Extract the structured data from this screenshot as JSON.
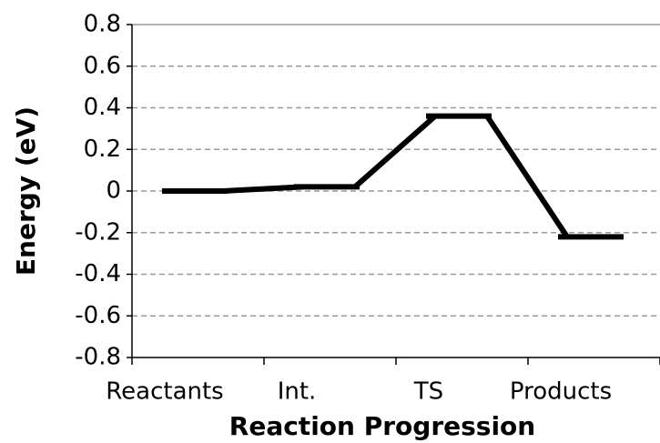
{
  "chart_data": {
    "type": "energy-profile",
    "x_label": "Reaction Progression",
    "y_label": "Energy (eV)",
    "categories": [
      "Reactants",
      "Int.",
      "TS",
      "Products"
    ],
    "values": [
      0,
      0.02,
      0.36,
      -0.22
    ],
    "color": "#000000",
    "ylim": [
      -0.8,
      0.8
    ],
    "yticks": [
      -0.8,
      -0.6,
      -0.4,
      -0.2,
      0,
      0.2,
      0.4,
      0.6,
      0.8
    ],
    "grid": true
  }
}
